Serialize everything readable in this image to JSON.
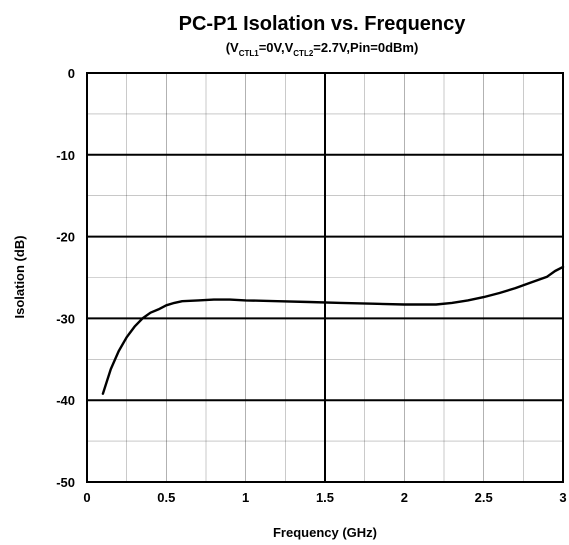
{
  "chart_data": {
    "type": "line",
    "title": "PC-P1 Isolation vs. Frequency",
    "subtitle": {
      "open": "(V",
      "ctl1_sub": "CTL1",
      "mid1": "=0V,V",
      "ctl2_sub": "CTL2",
      "rest": "=2.7V,Pin=0dBm)"
    },
    "xlabel": "Frequency (GHz)",
    "ylabel": "Isolation (dB)",
    "xlim": [
      0,
      3
    ],
    "ylim": [
      -50,
      0
    ],
    "x_ticks": [
      0,
      0.5,
      1,
      1.5,
      2,
      2.5,
      3
    ],
    "x_tick_labels": [
      "0",
      "0.5",
      "1",
      "1.5",
      "2",
      "2.5",
      "3"
    ],
    "y_ticks": [
      0,
      -10,
      -20,
      -30,
      -40,
      -50
    ],
    "y_tick_labels": [
      "0",
      "-10",
      "-20",
      "-30",
      "-40",
      "-50"
    ],
    "grid": true,
    "series": [
      {
        "x": [
          0.1,
          0.15,
          0.2,
          0.25,
          0.3,
          0.35,
          0.4,
          0.45,
          0.5,
          0.55,
          0.6,
          0.7,
          0.8,
          0.9,
          1.0,
          1.2,
          1.4,
          1.6,
          1.8,
          2.0,
          2.2,
          2.3,
          2.4,
          2.5,
          2.6,
          2.7,
          2.8,
          2.9,
          2.95,
          3.0
        ],
        "y": [
          -39.2,
          -36.2,
          -34.0,
          -32.3,
          -31.0,
          -30.0,
          -29.3,
          -28.9,
          -28.4,
          -28.1,
          -27.9,
          -27.8,
          -27.7,
          -27.7,
          -27.8,
          -27.9,
          -28.0,
          -28.1,
          -28.2,
          -28.3,
          -28.3,
          -28.1,
          -27.8,
          -27.4,
          -26.9,
          -26.3,
          -25.6,
          -24.9,
          -24.2,
          -23.7
        ]
      }
    ]
  }
}
